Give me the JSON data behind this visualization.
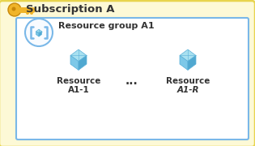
{
  "title": "Subscription A",
  "rg_label": "Resource group A1",
  "res1_line1": "Resource",
  "res1_line2": "A1-1",
  "res2_line1": "Resource",
  "res2_line2": "A1-R",
  "dots_label": "...",
  "outer_bg": "#fdf9d6",
  "outer_border": "#e8d44d",
  "inner_bg": "#ffffff",
  "inner_border": "#7ab8e8",
  "rg_circle_border": "#7ab8e8",
  "title_color": "#333333",
  "label_color": "#333333",
  "key_gold": "#f0b429",
  "key_dark": "#c8880a",
  "cube_top": "#a8e0f0",
  "cube_left": "#7dc8e8",
  "cube_right": "#50a8d0",
  "cube_line": "#5ab0d8",
  "bracket_color": "#7ab8e8",
  "figsize": [
    3.15,
    1.8
  ],
  "dpi": 100
}
